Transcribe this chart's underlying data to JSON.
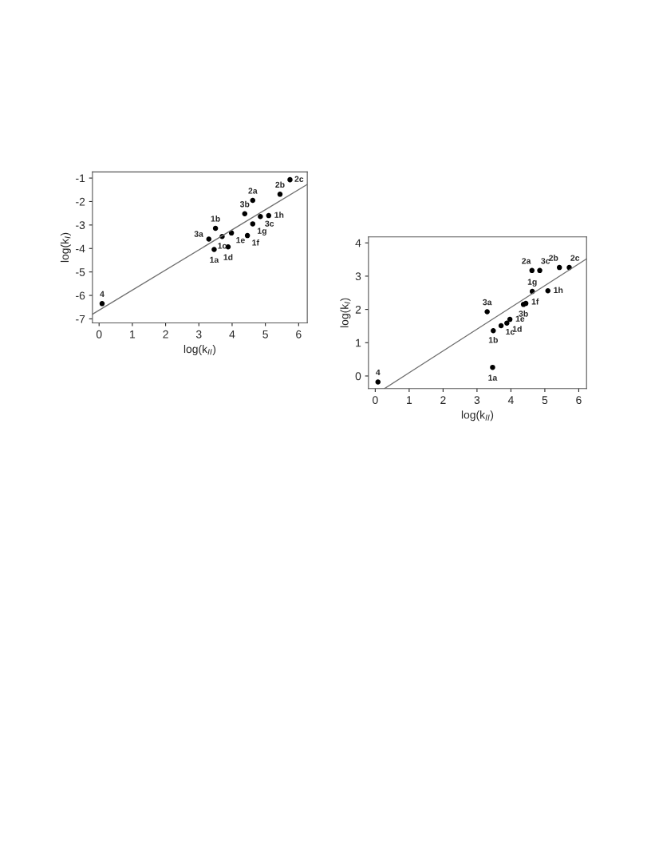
{
  "chart_data": [
    {
      "type": "scatter",
      "xlabel": "log(k$_{II}$)",
      "ylabel": "log(k$_{I}$)",
      "xlim": [
        -0.2,
        6.26
      ],
      "ylim": [
        -7.17,
        -0.74
      ],
      "xticks": [
        0,
        1,
        2,
        3,
        4,
        5,
        6
      ],
      "yticks": [
        -7,
        -6,
        -5,
        -4,
        -3,
        -2,
        -1
      ],
      "grid": false,
      "series": [
        {
          "color": "#000000",
          "marker": "circle",
          "x": [
            3.46,
            3.5,
            3.7,
            3.88,
            3.98,
            4.46,
            4.62,
            5.1,
            4.62,
            5.44,
            5.74,
            3.3,
            4.38,
            4.85,
            0.09
          ],
          "values": [
            -4.04,
            -3.14,
            -3.49,
            -3.93,
            -3.34,
            -3.45,
            -2.95,
            -2.6,
            -1.95,
            -1.69,
            -1.07,
            -3.6,
            -2.52,
            -2.64,
            -6.35
          ]
        },
        {
          "type": "line",
          "color": "#707070",
          "marker": "none",
          "line_style": "solid",
          "x": [
            -0.2,
            6.26
          ],
          "values": [
            -6.8,
            -1.27
          ]
        }
      ],
      "annotations": [
        {
          "text": "1a",
          "x": 3.46,
          "y": -4.04
        },
        {
          "text": "1b",
          "x": 3.5,
          "y": -3.14
        },
        {
          "text": "1c",
          "x": 3.7,
          "y": -3.49
        },
        {
          "text": "1d",
          "x": 3.88,
          "y": -3.93
        },
        {
          "text": "1e",
          "x": 3.98,
          "y": -3.34
        },
        {
          "text": "1f",
          "x": 4.46,
          "y": -3.45
        },
        {
          "text": "1g",
          "x": 4.62,
          "y": -2.95
        },
        {
          "text": "1h",
          "x": 5.1,
          "y": -2.6
        },
        {
          "text": "2a",
          "x": 4.62,
          "y": -1.95
        },
        {
          "text": "2b",
          "x": 5.44,
          "y": -1.69
        },
        {
          "text": "2c",
          "x": 5.74,
          "y": -1.07
        },
        {
          "text": "3a",
          "x": 3.3,
          "y": -3.6
        },
        {
          "text": "3b",
          "x": 4.38,
          "y": -2.52
        },
        {
          "text": "3c",
          "x": 4.85,
          "y": -2.64
        },
        {
          "text": "4",
          "x": 0.09,
          "y": -6.35
        }
      ]
    },
    {
      "type": "scatter",
      "xlabel": "log(k$_{II}$)",
      "ylabel": "log(k$_{I}$)",
      "xlim": [
        -0.2,
        6.23
      ],
      "ylim": [
        -0.38,
        4.18
      ],
      "xticks": [
        0,
        1,
        2,
        3,
        4,
        5,
        6
      ],
      "yticks": [
        0,
        1,
        2,
        3,
        4
      ],
      "grid": false,
      "series": [
        {
          "color": "#000000",
          "marker": "circle",
          "x": [
            3.46,
            3.48,
            3.71,
            3.88,
            3.97,
            4.44,
            4.63,
            5.09,
            4.62,
            5.43,
            5.72,
            3.3,
            4.37,
            4.85,
            0.08
          ],
          "values": [
            0.26,
            1.36,
            1.51,
            1.59,
            1.7,
            2.18,
            2.54,
            2.56,
            3.17,
            3.26,
            3.26,
            1.93,
            2.15,
            3.17,
            -0.18
          ]
        },
        {
          "type": "line",
          "color": "#707070",
          "marker": "none",
          "line_style": "solid",
          "x": [
            0.27,
            6.23
          ],
          "values": [
            -0.38,
            3.52
          ]
        }
      ],
      "annotations": [
        {
          "text": "1a",
          "x": 3.46,
          "y": 0.26
        },
        {
          "text": "1b",
          "x": 3.48,
          "y": 1.36
        },
        {
          "text": "1c",
          "x": 3.71,
          "y": 1.51
        },
        {
          "text": "1d",
          "x": 3.88,
          "y": 1.59
        },
        {
          "text": "1e",
          "x": 3.97,
          "y": 1.7
        },
        {
          "text": "1f",
          "x": 4.44,
          "y": 2.18
        },
        {
          "text": "1g",
          "x": 4.63,
          "y": 2.54
        },
        {
          "text": "1h",
          "x": 5.09,
          "y": 2.56
        },
        {
          "text": "2a",
          "x": 4.62,
          "y": 3.17
        },
        {
          "text": "2b",
          "x": 5.43,
          "y": 3.26
        },
        {
          "text": "2c",
          "x": 5.72,
          "y": 3.26
        },
        {
          "text": "3a",
          "x": 3.3,
          "y": 1.93
        },
        {
          "text": "3b",
          "x": 4.37,
          "y": 2.15
        },
        {
          "text": "3c",
          "x": 4.85,
          "y": 3.17
        },
        {
          "text": "4",
          "x": 0.08,
          "y": -0.18
        }
      ]
    }
  ]
}
